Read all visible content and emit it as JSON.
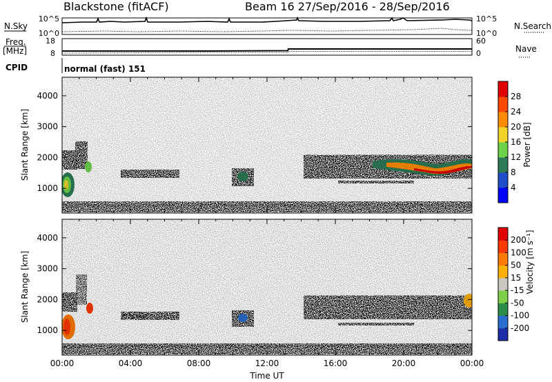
{
  "header": {
    "title": "Blackstone (fitACF)",
    "beam_info": "Beam 16  27/Sep/2016 - 28/Sep/2016"
  },
  "top_panels": {
    "nsky_label": "N.Sky",
    "nsearch_label": "N.Search",
    "nsky_ticks": [
      "10^5",
      "10^0"
    ],
    "nsearch_ticks": [
      "10^5",
      "10^0"
    ],
    "freq_label": "Freq.",
    "freq_unit": "[MHz]",
    "freq_ticks": [
      "18",
      "8"
    ],
    "nave_label": "Nave",
    "nave_ticks": [
      "60",
      "0"
    ],
    "cpid_label": "CPID",
    "cpid_value": "normal (fast) 151"
  },
  "chart_data": [
    {
      "type": "heatmap",
      "name": "power",
      "ylabel": "Slant Range [km]",
      "xlabel": "",
      "xlim": [
        0,
        24
      ],
      "ylim": [
        200,
        4600
      ],
      "x_ticks": [
        0,
        4,
        8,
        12,
        16,
        20,
        24
      ],
      "x_tick_labels": [
        "00:00",
        "04:00",
        "08:00",
        "12:00",
        "16:00",
        "20:00",
        "00:00"
      ],
      "y_ticks": [
        1000,
        2000,
        3000,
        4000
      ],
      "y_tick_labels": [
        "1000",
        "2000",
        "3000",
        "4000"
      ],
      "colorbar": {
        "label": "Power [dB]",
        "ticks": [
          "4",
          "8",
          "12",
          "16",
          "20",
          "24",
          "28"
        ],
        "colors": [
          "#0000ff",
          "#1e4fc8",
          "#2c7a56",
          "#6fd34a",
          "#f2d32a",
          "#ff8c00",
          "#ff4a00",
          "#e00000"
        ]
      }
    },
    {
      "type": "heatmap",
      "name": "velocity",
      "ylabel": "Slant Range [km]",
      "xlabel": "Time UT",
      "xlim": [
        0,
        24
      ],
      "ylim": [
        200,
        4600
      ],
      "x_ticks": [
        0,
        4,
        8,
        12,
        16,
        20,
        24
      ],
      "x_tick_labels": [
        "00:00",
        "04:00",
        "08:00",
        "12:00",
        "16:00",
        "20:00",
        "00:00"
      ],
      "y_ticks": [
        1000,
        2000,
        3000,
        4000
      ],
      "y_tick_labels": [
        "1000",
        "2000",
        "3000",
        "4000"
      ],
      "colorbar": {
        "label": "Velocity [m s⁻¹]",
        "ticks": [
          "200",
          "100",
          "50",
          "15",
          "-15",
          "-50",
          "-100",
          "-200"
        ],
        "colors": [
          "#1b2ea8",
          "#2a6fd0",
          "#2c8c4a",
          "#7ed04a",
          "#c8c8c0",
          "#ffb000",
          "#ff7a00",
          "#ff3a00",
          "#e00000"
        ]
      }
    }
  ]
}
